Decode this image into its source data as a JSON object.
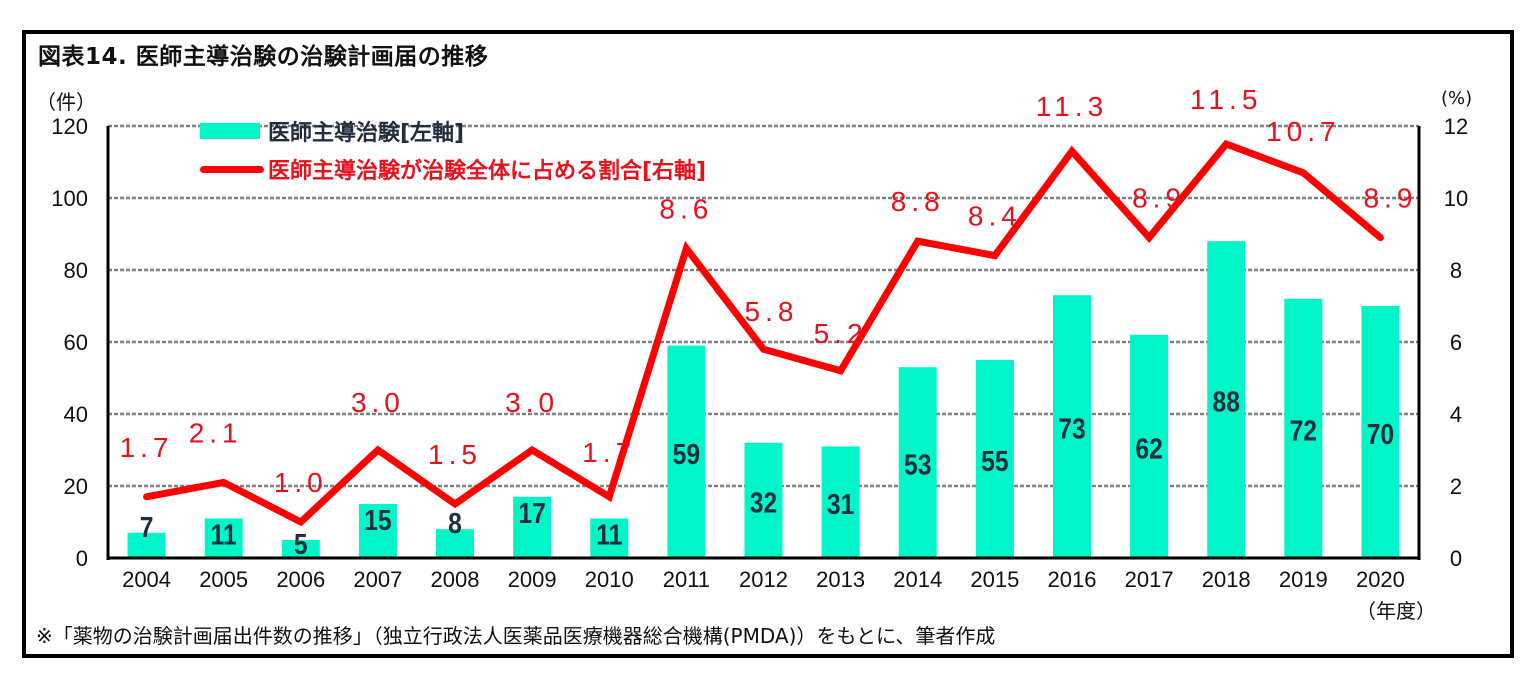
{
  "figure": {
    "title": "図表14. 医師主導治験の治験計画届の推移",
    "left_unit": "（件）",
    "right_unit": "(%)",
    "x_unit": "（年度）",
    "footnote": "※「薬物の治験計画届出件数の推移」（独立行政法人医薬品医療機器総合機構(PMDA)）をもとに、筆者作成",
    "colors": {
      "bar": "#00f5c8",
      "line": "#ff0000",
      "bar_label": "#1f2d3d",
      "line_label": "#e8101a",
      "grid": "#808080",
      "axis": "#000000"
    }
  },
  "chart_data": {
    "type": "bar+line",
    "title": "図表14. 医師主導治験の治験計画届の推移",
    "xlabel": "（年度）",
    "ylabel": "（件）",
    "y2label": "(%)",
    "categories": [
      "2004",
      "2005",
      "2006",
      "2007",
      "2008",
      "2009",
      "2010",
      "2011",
      "2012",
      "2013",
      "2014",
      "2015",
      "2016",
      "2017",
      "2018",
      "2019",
      "2020"
    ],
    "series": [
      {
        "name": "医師主導治験[左軸]",
        "type": "bar",
        "axis": "left",
        "values": [
          7,
          11,
          5,
          15,
          8,
          17,
          11,
          59,
          32,
          31,
          53,
          55,
          73,
          62,
          88,
          72,
          70
        ],
        "labels": [
          "7",
          "11",
          "5",
          "15",
          "8",
          "17",
          "11",
          "59",
          "32",
          "31",
          "53",
          "55",
          "73",
          "62",
          "88",
          "72",
          "70"
        ]
      },
      {
        "name": "医師主導治験が治験全体に占める割合[右軸]",
        "type": "line",
        "axis": "right",
        "values": [
          1.7,
          2.1,
          1.0,
          3.0,
          1.5,
          3.0,
          1.7,
          8.6,
          5.8,
          5.2,
          8.8,
          8.4,
          11.3,
          8.9,
          11.5,
          10.7,
          8.9
        ],
        "labels": [
          "1.7",
          "2.1",
          "1.0",
          "3.0",
          "1.5",
          "3.0",
          "1.7",
          "8.6",
          "5.8",
          "5.2",
          "8.8",
          "8.4",
          "11.3",
          "8.9",
          "11.5",
          "10.7",
          "8.9"
        ]
      }
    ],
    "ylim": [
      0,
      120
    ],
    "y2lim": [
      0,
      12
    ],
    "yticks": [
      "0",
      "20",
      "40",
      "60",
      "80",
      "100",
      "120"
    ],
    "y2ticks": [
      "0",
      "2",
      "4",
      "6",
      "8",
      "10",
      "12"
    ],
    "grid": true,
    "legend": "top-left"
  }
}
